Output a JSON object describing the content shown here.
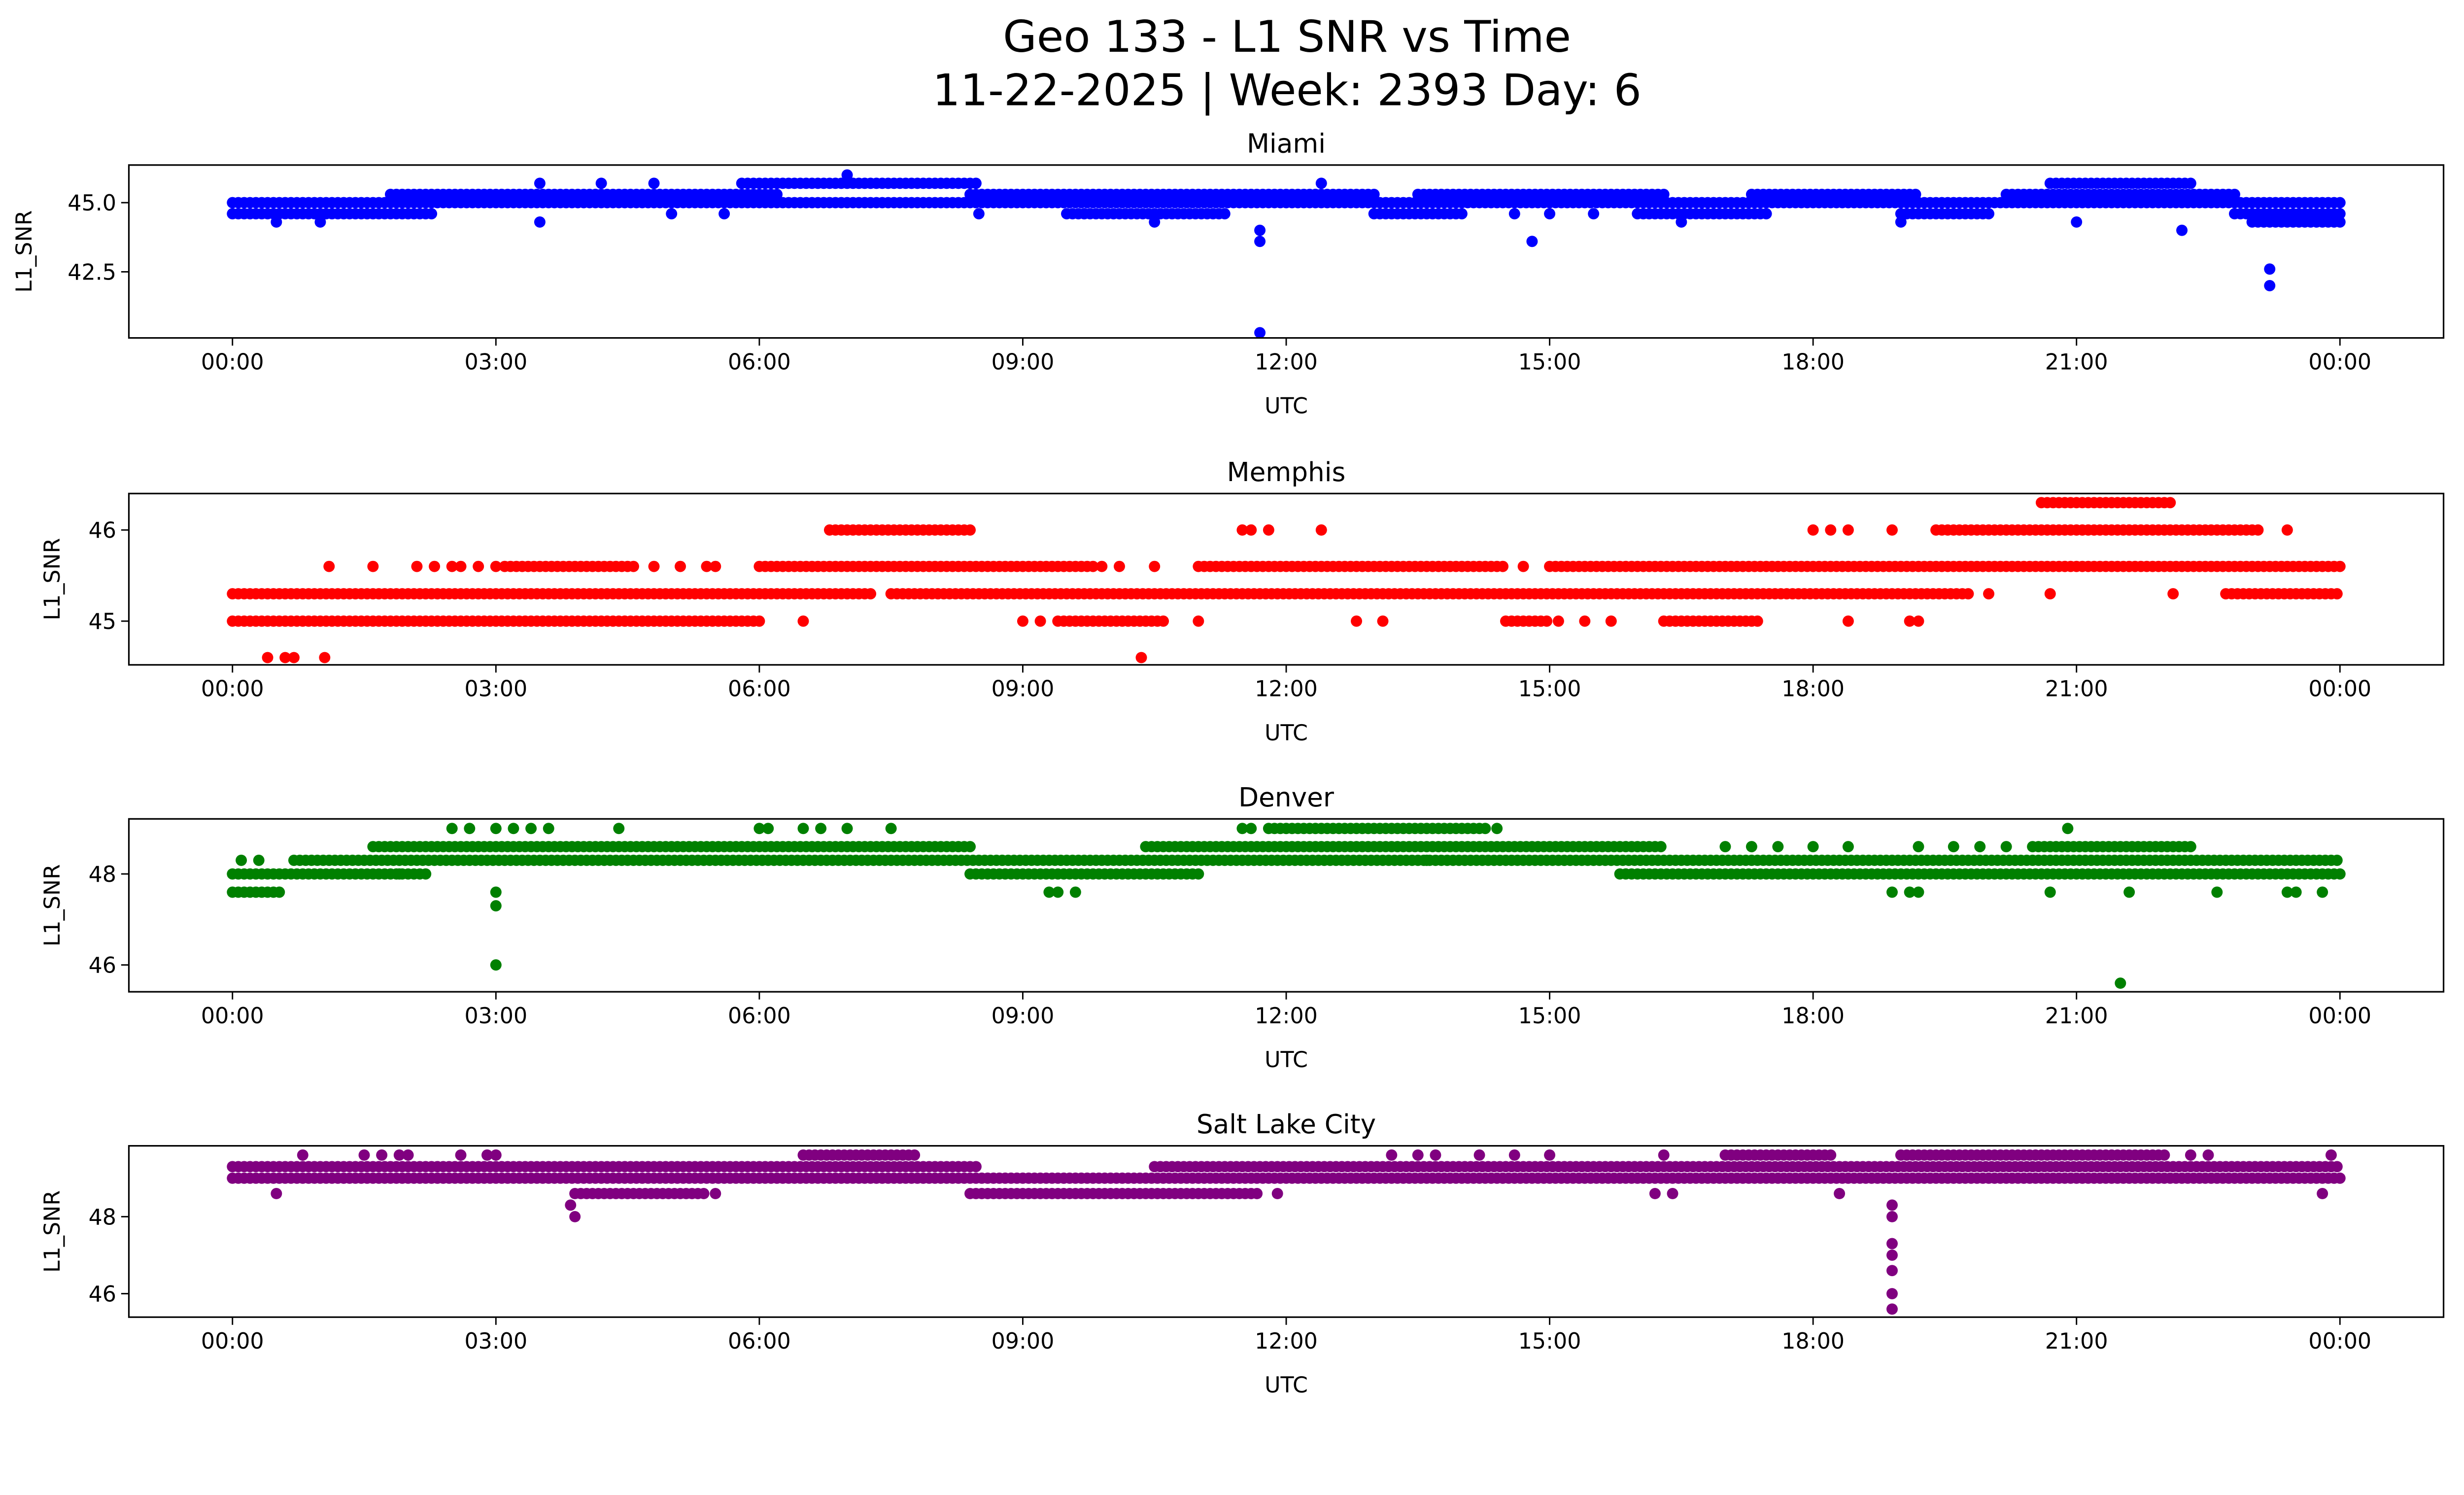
{
  "suptitle": {
    "line1": "Geo 133 - L1 SNR vs Time",
    "line2": "11-22-2025 | Week: 2393 Day: 6"
  },
  "chart_data": [
    {
      "type": "scatter",
      "title": "Miami",
      "xlabel": "UTC",
      "ylabel": "L1_SNR",
      "color": "#0000ff",
      "xlim": [
        -1.18,
        25.18
      ],
      "ylim": [
        40.11,
        46.36
      ],
      "xticks": [
        0,
        3,
        6,
        9,
        12,
        15,
        18,
        21,
        24
      ],
      "xtick_labels": [
        "00:00",
        "03:00",
        "06:00",
        "09:00",
        "12:00",
        "15:00",
        "18:00",
        "21:00",
        "00:00"
      ],
      "yticks": [
        42.5,
        45.0
      ],
      "ytick_labels": [
        "42.5",
        "45.0"
      ],
      "x_unit": "hours UTC",
      "bands": [
        [
          0,
          24,
          45.0
        ],
        [
          0,
          2.3,
          44.6
        ],
        [
          1.8,
          6.2,
          45.3
        ],
        [
          5.8,
          8.5,
          45.7
        ],
        [
          8.4,
          13.0,
          45.3
        ],
        [
          9.5,
          11.3,
          44.6
        ],
        [
          13.0,
          14.0,
          44.6
        ],
        [
          13.5,
          16.3,
          45.3
        ],
        [
          16.0,
          17.5,
          44.6
        ],
        [
          17.3,
          19.2,
          45.3
        ],
        [
          19.0,
          20.0,
          44.6
        ],
        [
          20.2,
          22.8,
          45.3
        ],
        [
          20.7,
          22.3,
          45.7
        ],
        [
          22.8,
          24,
          44.6
        ],
        [
          23.0,
          24,
          44.3
        ]
      ],
      "points": [
        [
          0.5,
          44.3
        ],
        [
          1.0,
          44.3
        ],
        [
          3.5,
          44.3
        ],
        [
          3.5,
          45.7
        ],
        [
          4.2,
          45.7
        ],
        [
          4.8,
          45.7
        ],
        [
          5.0,
          44.6
        ],
        [
          5.6,
          44.6
        ],
        [
          7.0,
          46.0
        ],
        [
          8.5,
          44.6
        ],
        [
          9.7,
          44.6
        ],
        [
          10.5,
          44.3
        ],
        [
          11.7,
          40.3
        ],
        [
          11.7,
          44.0
        ],
        [
          11.7,
          43.6
        ],
        [
          12.4,
          45.7
        ],
        [
          14.6,
          44.6
        ],
        [
          14.8,
          43.6
        ],
        [
          15.0,
          44.6
        ],
        [
          15.5,
          44.6
        ],
        [
          16.5,
          44.3
        ],
        [
          19.0,
          44.3
        ],
        [
          21.0,
          44.3
        ],
        [
          22.2,
          44.0
        ],
        [
          23.2,
          42.6
        ],
        [
          23.2,
          42.0
        ]
      ]
    },
    {
      "type": "scatter",
      "title": "Memphis",
      "xlabel": "UTC",
      "ylabel": "L1_SNR",
      "color": "#ff0000",
      "xlim": [
        -1.18,
        25.18
      ],
      "ylim": [
        44.52,
        46.4
      ],
      "xticks": [
        0,
        3,
        6,
        9,
        12,
        15,
        18,
        21,
        24
      ],
      "xtick_labels": [
        "00:00",
        "03:00",
        "06:00",
        "09:00",
        "12:00",
        "15:00",
        "18:00",
        "21:00",
        "00:00"
      ],
      "yticks": [
        45,
        46
      ],
      "ytick_labels": [
        "45",
        "46"
      ],
      "x_unit": "hours UTC",
      "bands": [
        [
          0,
          7.3,
          45.3
        ],
        [
          7.5,
          19.8,
          45.3
        ],
        [
          22.7,
          24,
          45.3
        ],
        [
          0,
          6.0,
          45.0
        ],
        [
          9.4,
          10.6,
          45.0
        ],
        [
          14.5,
          15.0,
          45.0
        ],
        [
          16.3,
          17.4,
          45.0
        ],
        [
          3.1,
          4.6,
          45.6
        ],
        [
          6.0,
          9.8,
          45.6
        ],
        [
          11.0,
          14.5,
          45.6
        ],
        [
          15.0,
          24,
          45.6
        ],
        [
          6.8,
          8.4,
          46.0
        ],
        [
          19.4,
          23.1,
          46.0
        ],
        [
          20.6,
          22.1,
          46.3
        ]
      ],
      "points": [
        [
          6.5,
          45.0
        ],
        [
          9.0,
          45.0
        ],
        [
          9.2,
          45.0
        ],
        [
          11.0,
          45.0
        ],
        [
          12.8,
          45.0
        ],
        [
          13.1,
          45.0
        ],
        [
          15.1,
          45.0
        ],
        [
          15.4,
          45.0
        ],
        [
          15.7,
          45.0
        ],
        [
          18.4,
          45.0
        ],
        [
          19.1,
          45.0
        ],
        [
          19.2,
          45.0
        ],
        [
          1.1,
          45.6
        ],
        [
          1.6,
          45.6
        ],
        [
          2.1,
          45.6
        ],
        [
          2.3,
          45.6
        ],
        [
          2.5,
          45.6
        ],
        [
          2.6,
          45.6
        ],
        [
          2.8,
          45.6
        ],
        [
          3.0,
          45.6
        ],
        [
          4.8,
          45.6
        ],
        [
          5.1,
          45.6
        ],
        [
          5.4,
          45.6
        ],
        [
          5.5,
          45.6
        ],
        [
          9.9,
          45.6
        ],
        [
          10.1,
          45.6
        ],
        [
          10.5,
          45.6
        ],
        [
          14.7,
          45.6
        ],
        [
          11.5,
          46.0
        ],
        [
          11.6,
          46.0
        ],
        [
          11.8,
          46.0
        ],
        [
          12.4,
          46.0
        ],
        [
          18.0,
          46.0
        ],
        [
          18.2,
          46.0
        ],
        [
          18.4,
          46.0
        ],
        [
          18.9,
          46.0
        ],
        [
          23.4,
          46.0
        ],
        [
          20.0,
          45.3
        ],
        [
          20.7,
          45.3
        ],
        [
          22.1,
          45.3
        ],
        [
          0.4,
          44.6
        ],
        [
          0.6,
          44.6
        ],
        [
          0.7,
          44.6
        ],
        [
          1.05,
          44.6
        ],
        [
          10.35,
          44.6
        ]
      ]
    },
    {
      "type": "scatter",
      "title": "Denver",
      "xlabel": "UTC",
      "ylabel": "L1_SNR",
      "color": "#008000",
      "xlim": [
        -1.18,
        25.18
      ],
      "ylim": [
        45.41,
        49.21
      ],
      "xticks": [
        0,
        3,
        6,
        9,
        12,
        15,
        18,
        21,
        24
      ],
      "xtick_labels": [
        "00:00",
        "03:00",
        "06:00",
        "09:00",
        "12:00",
        "15:00",
        "18:00",
        "21:00",
        "00:00"
      ],
      "yticks": [
        46,
        48
      ],
      "ytick_labels": [
        "46",
        "48"
      ],
      "x_unit": "hours UTC",
      "bands": [
        [
          0,
          2.2,
          48.0
        ],
        [
          8.4,
          11.0,
          48.0
        ],
        [
          15.8,
          24,
          48.0
        ],
        [
          0.7,
          24,
          48.3
        ],
        [
          1.6,
          8.4,
          48.6
        ],
        [
          10.4,
          16.3,
          48.6
        ],
        [
          20.5,
          22.3,
          48.6
        ],
        [
          11.8,
          14.3,
          49.0
        ],
        [
          0,
          0.55,
          47.6
        ]
      ],
      "points": [
        [
          0.1,
          48.3
        ],
        [
          0.3,
          48.3
        ],
        [
          17.0,
          48.6
        ],
        [
          17.3,
          48.6
        ],
        [
          17.6,
          48.6
        ],
        [
          18.0,
          48.6
        ],
        [
          18.4,
          48.6
        ],
        [
          19.2,
          48.6
        ],
        [
          19.6,
          48.6
        ],
        [
          19.9,
          48.6
        ],
        [
          20.2,
          48.6
        ],
        [
          2.5,
          49.0
        ],
        [
          2.7,
          49.0
        ],
        [
          3.0,
          49.0
        ],
        [
          3.2,
          49.0
        ],
        [
          3.4,
          49.0
        ],
        [
          3.6,
          49.0
        ],
        [
          4.4,
          49.0
        ],
        [
          6.0,
          49.0
        ],
        [
          6.1,
          49.0
        ],
        [
          6.5,
          49.0
        ],
        [
          6.7,
          49.0
        ],
        [
          7.0,
          49.0
        ],
        [
          7.5,
          49.0
        ],
        [
          11.5,
          49.0
        ],
        [
          11.6,
          49.0
        ],
        [
          14.4,
          49.0
        ],
        [
          20.9,
          49.0
        ],
        [
          9.3,
          47.6
        ],
        [
          9.4,
          47.6
        ],
        [
          9.6,
          47.6
        ],
        [
          18.9,
          47.6
        ],
        [
          19.1,
          47.6
        ],
        [
          19.2,
          47.6
        ],
        [
          20.7,
          47.6
        ],
        [
          21.6,
          47.6
        ],
        [
          22.6,
          47.6
        ],
        [
          23.4,
          47.6
        ],
        [
          23.5,
          47.6
        ],
        [
          23.8,
          47.6
        ],
        [
          3.0,
          47.6
        ],
        [
          3.0,
          47.3
        ],
        [
          3.0,
          46.0
        ],
        [
          21.5,
          45.6
        ],
        [
          1.9,
          48.0
        ],
        [
          13.6,
          48.3
        ]
      ]
    },
    {
      "type": "scatter",
      "title": "Salt Lake City",
      "xlabel": "UTC",
      "ylabel": "L1_SNR",
      "color": "#800080",
      "xlim": [
        -1.18,
        25.18
      ],
      "ylim": [
        45.39,
        49.84
      ],
      "xticks": [
        0,
        3,
        6,
        9,
        12,
        15,
        18,
        21,
        24
      ],
      "xtick_labels": [
        "00:00",
        "03:00",
        "06:00",
        "09:00",
        "12:00",
        "15:00",
        "18:00",
        "21:00",
        "00:00"
      ],
      "yticks": [
        46,
        48
      ],
      "ytick_labels": [
        "46",
        "48"
      ],
      "x_unit": "hours UTC",
      "bands": [
        [
          0,
          8.5,
          49.3
        ],
        [
          10.5,
          24,
          49.3
        ],
        [
          0,
          24,
          49.0
        ],
        [
          3.9,
          5.4,
          48.6
        ],
        [
          8.4,
          11.7,
          48.6
        ],
        [
          6.5,
          7.8,
          49.6
        ],
        [
          17.0,
          18.2,
          49.6
        ],
        [
          19.0,
          22.0,
          49.6
        ]
      ],
      "points": [
        [
          0.5,
          48.6
        ],
        [
          5.5,
          48.6
        ],
        [
          11.9,
          48.6
        ],
        [
          16.2,
          48.6
        ],
        [
          16.4,
          48.6
        ],
        [
          18.3,
          48.6
        ],
        [
          23.8,
          48.6
        ],
        [
          0.8,
          49.6
        ],
        [
          1.5,
          49.6
        ],
        [
          1.7,
          49.6
        ],
        [
          1.9,
          49.6
        ],
        [
          2.0,
          49.6
        ],
        [
          2.6,
          49.6
        ],
        [
          2.9,
          49.6
        ],
        [
          3.0,
          49.6
        ],
        [
          13.2,
          49.6
        ],
        [
          13.5,
          49.6
        ],
        [
          13.7,
          49.6
        ],
        [
          14.2,
          49.6
        ],
        [
          14.6,
          49.6
        ],
        [
          15.0,
          49.6
        ],
        [
          16.3,
          49.6
        ],
        [
          22.3,
          49.6
        ],
        [
          22.5,
          49.6
        ],
        [
          23.9,
          49.6
        ],
        [
          3.85,
          48.3
        ],
        [
          3.9,
          48.0
        ],
        [
          18.9,
          48.3
        ],
        [
          18.9,
          48.0
        ],
        [
          18.9,
          47.3
        ],
        [
          18.9,
          47.0
        ],
        [
          18.9,
          46.6
        ],
        [
          18.9,
          46.0
        ],
        [
          18.9,
          45.6
        ]
      ]
    }
  ]
}
